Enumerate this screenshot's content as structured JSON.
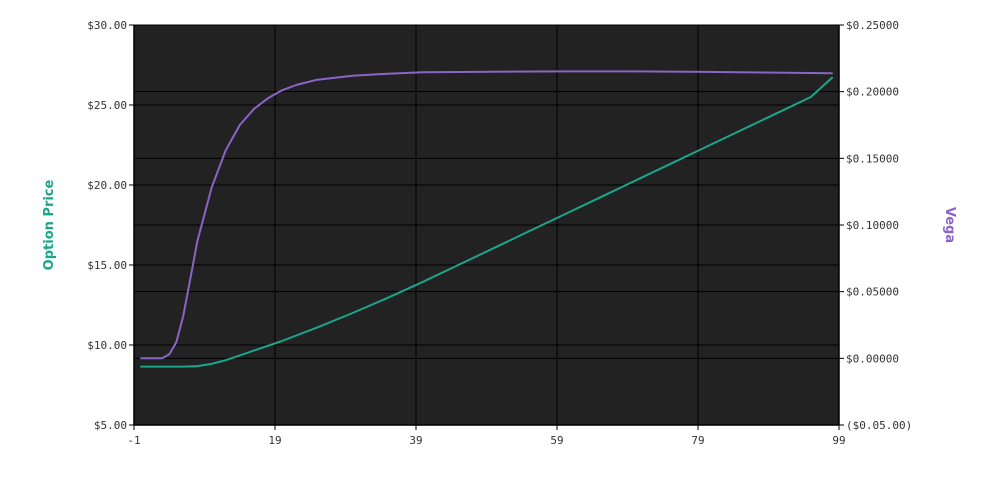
{
  "chart_data": {
    "type": "line",
    "title": "",
    "xlabel": "",
    "ylabel_left": "Option Price",
    "ylabel_right": "Vega",
    "colors": {
      "plot_background": "#222222",
      "gridline": "#000000",
      "option_price": "#1aa68a",
      "vega": "#8a64c8",
      "tick_text": "#333333"
    },
    "grid": true,
    "xlim": [
      -1,
      99
    ],
    "ylim_left": [
      5,
      30
    ],
    "ylim_right": [
      -0.05,
      0.25
    ],
    "x_ticks": [
      {
        "value": -1,
        "label": "-1"
      },
      {
        "value": 19,
        "label": "19"
      },
      {
        "value": 39,
        "label": "39"
      },
      {
        "value": 59,
        "label": "59"
      },
      {
        "value": 79,
        "label": "79"
      },
      {
        "value": 99,
        "label": "99"
      }
    ],
    "y_left_ticks": [
      {
        "value": 5,
        "label": "$5.00"
      },
      {
        "value": 10,
        "label": "$10.00"
      },
      {
        "value": 15,
        "label": "$15.00"
      },
      {
        "value": 20,
        "label": "$20.00"
      },
      {
        "value": 25,
        "label": "$25.00"
      },
      {
        "value": 30,
        "label": "$30.00"
      }
    ],
    "y_right_ticks": [
      {
        "value": -0.05,
        "label": "($0.05.00)"
      },
      {
        "value": 0.0,
        "label": "$0.00000"
      },
      {
        "value": 0.05,
        "label": "$0.05000"
      },
      {
        "value": 0.1,
        "label": "$0.10000"
      },
      {
        "value": 0.15,
        "label": "$0.15000"
      },
      {
        "value": 0.2,
        "label": "$0.20000"
      },
      {
        "value": 0.25,
        "label": "$0.25000"
      }
    ],
    "series": [
      {
        "axis": "left",
        "x": [
          0,
          2,
          4,
          6,
          8,
          10,
          12,
          14,
          16,
          18,
          20,
          25,
          30,
          35,
          40,
          45,
          50,
          55,
          60,
          65,
          70,
          75,
          80,
          85,
          90,
          95,
          98
        ],
        "y": [
          8.65,
          8.65,
          8.65,
          8.65,
          8.68,
          8.82,
          9.05,
          9.35,
          9.65,
          9.95,
          10.25,
          11.1,
          12.0,
          12.95,
          13.95,
          15.0,
          16.05,
          17.1,
          18.15,
          19.2,
          20.25,
          21.3,
          22.35,
          23.4,
          24.45,
          25.5,
          26.7
        ]
      },
      {
        "axis": "right",
        "x": [
          0,
          2,
          3,
          4,
          5,
          6,
          7,
          8,
          10,
          12,
          14,
          16,
          18,
          20,
          22,
          25,
          30,
          35,
          40,
          50,
          60,
          70,
          80,
          90,
          98
        ],
        "y": [
          0.0,
          0.0,
          0.0,
          0.003,
          0.012,
          0.032,
          0.06,
          0.088,
          0.128,
          0.156,
          0.175,
          0.187,
          0.195,
          0.201,
          0.205,
          0.209,
          0.212,
          0.2135,
          0.2145,
          0.215,
          0.2152,
          0.2152,
          0.2148,
          0.2143,
          0.2138
        ]
      }
    ]
  }
}
